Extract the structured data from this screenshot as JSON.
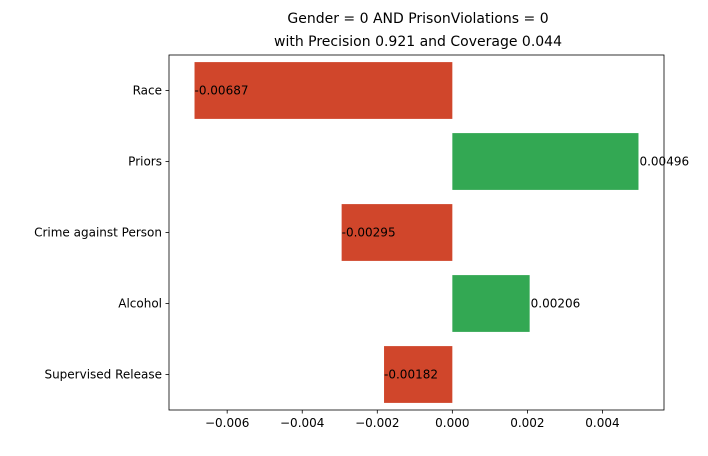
{
  "chart_data": {
    "type": "bar",
    "orientation": "horizontal",
    "title": "Gender = 0 AND PrisonViolations = 0",
    "subtitle": "with Precision 0.921 and Coverage 0.044",
    "xlabel": "",
    "ylabel": "",
    "xlim": [
      -0.00755,
      0.00564
    ],
    "grid": false,
    "categories": [
      "Race",
      "Priors",
      "Crime against Person",
      "Alcohol",
      "Supervised Release"
    ],
    "values": [
      -0.00687,
      0.00496,
      -0.00295,
      0.00206,
      -0.00182
    ],
    "value_labels": [
      "-0.00687",
      "0.00496",
      "-0.00295",
      "0.00206",
      "-0.00182"
    ],
    "x_ticks": [
      -0.006,
      -0.004,
      -0.002,
      0.0,
      0.002,
      0.004
    ],
    "x_tick_labels": [
      "−0.006",
      "−0.004",
      "−0.002",
      "0.000",
      "0.002",
      "0.004"
    ],
    "colors": {
      "positive": "#33a853",
      "negative": "#d0462b"
    }
  }
}
